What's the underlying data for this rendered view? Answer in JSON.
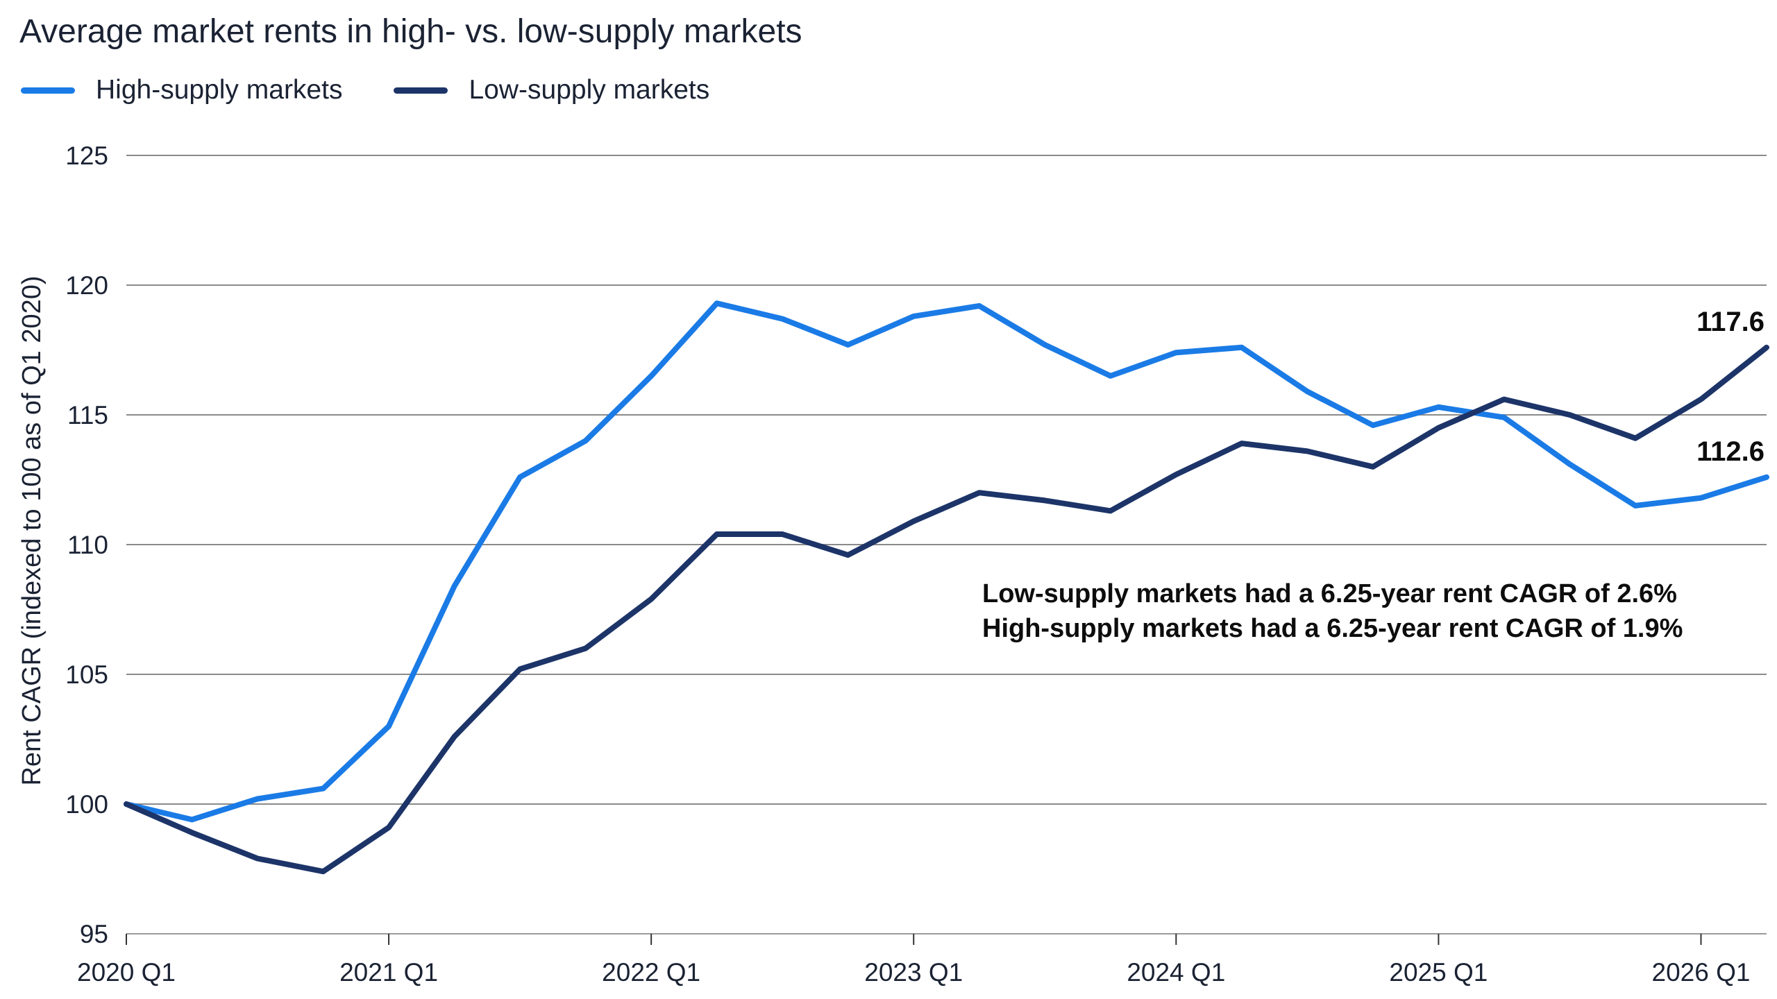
{
  "chart_data": {
    "type": "line",
    "title": "Average market rents in high- vs. low-supply markets",
    "ylabel": "Rent CAGR (indexed to 100 as of Q1 2020)",
    "xlabel": "",
    "ylim": [
      95,
      125
    ],
    "yticks": [
      "95",
      "100",
      "105",
      "110",
      "115",
      "120",
      "125"
    ],
    "xtick_labels": [
      "2020 Q1",
      "2021 Q1",
      "2022 Q1",
      "2023 Q1",
      "2024 Q1",
      "2025 Q1",
      "2026 Q1"
    ],
    "x": [
      "2020 Q1",
      "2020 Q2",
      "2020 Q3",
      "2020 Q4",
      "2021 Q1",
      "2021 Q2",
      "2021 Q3",
      "2021 Q4",
      "2022 Q1",
      "2022 Q2",
      "2022 Q3",
      "2022 Q4",
      "2023 Q1",
      "2023 Q2",
      "2023 Q3",
      "2023 Q4",
      "2024 Q1",
      "2024 Q2",
      "2024 Q3",
      "2024 Q4",
      "2025 Q1",
      "2025 Q2",
      "2025 Q3",
      "2025 Q4",
      "2026 Q1",
      "2026 Q2"
    ],
    "grid": true,
    "legend_position": "top-left",
    "series": [
      {
        "name": "High-supply markets",
        "color": "#1a7be6",
        "values": [
          100.0,
          99.4,
          100.2,
          100.6,
          103.0,
          108.4,
          112.6,
          114.0,
          116.5,
          119.3,
          118.7,
          117.7,
          118.8,
          119.2,
          117.7,
          116.5,
          117.4,
          117.6,
          115.9,
          114.6,
          115.3,
          114.9,
          113.1,
          111.5,
          111.8,
          112.6
        ],
        "end_label": "112.6"
      },
      {
        "name": "Low-supply markets",
        "color": "#1c3468",
        "values": [
          100.0,
          98.9,
          97.9,
          97.4,
          99.1,
          102.6,
          105.2,
          106.0,
          107.9,
          110.4,
          110.4,
          109.6,
          110.9,
          112.0,
          111.7,
          111.3,
          112.7,
          113.9,
          113.6,
          113.0,
          114.5,
          115.6,
          115.0,
          114.1,
          115.6,
          117.6
        ],
        "end_label": "117.6"
      }
    ],
    "annotations": [
      "Low-supply markets had a 6.25-year rent CAGR of 2.6%",
      "High-supply markets had a 6.25-year rent CAGR of 1.9%"
    ]
  }
}
